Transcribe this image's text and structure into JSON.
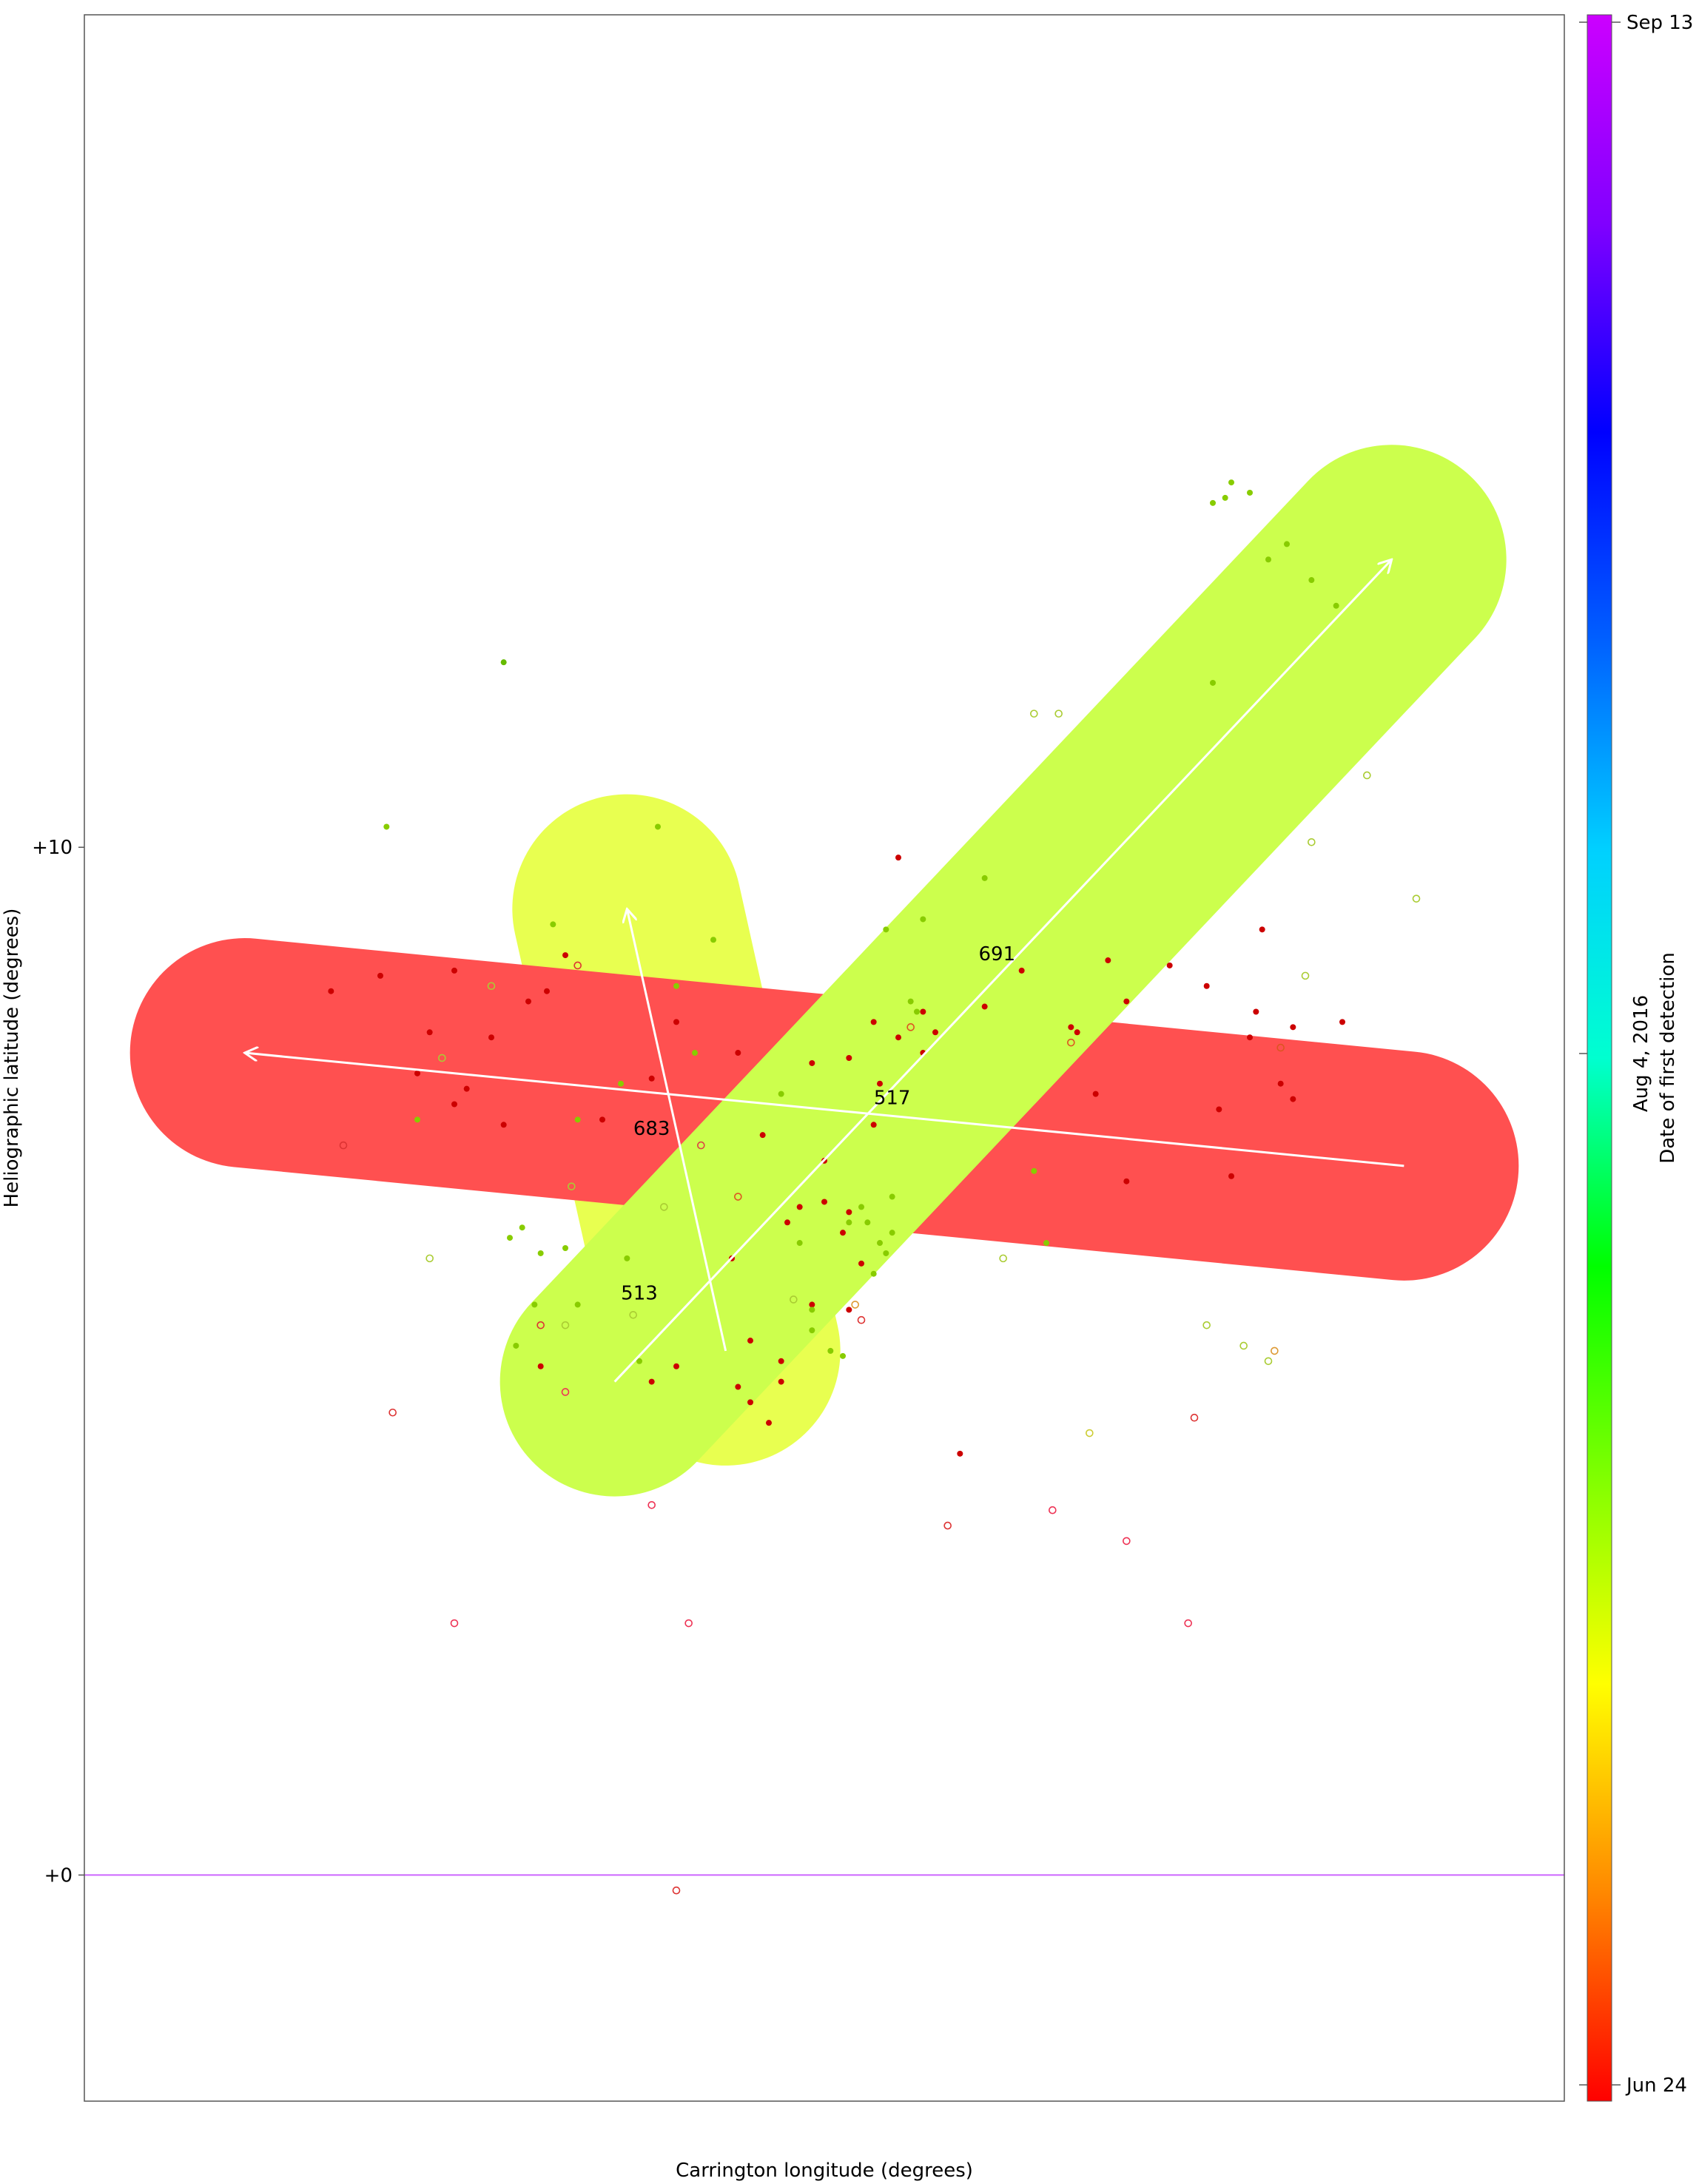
{
  "chart_data": {
    "type": "scatter",
    "xlabel": "Carrington longitude (degrees)",
    "ylabel": "Heliographic latitude (degrees)",
    "ylim": [
      -2.2,
      18.1
    ],
    "y_ticks": [
      {
        "value": 0,
        "label": "+0"
      },
      {
        "value": 10,
        "label": "+10"
      }
    ],
    "x_ticks": [],
    "grid": false,
    "colorbar": {
      "label": "Date of first detection",
      "ticks": [
        {
          "label": "Sep 13",
          "color": "#cc00ff"
        },
        {
          "label": "Aug 4, 2016",
          "color": "#00c8ff"
        },
        {
          "label": "Jun 24",
          "color": "#ff0000"
        }
      ],
      "colormap": [
        "#ff0000",
        "#ff8800",
        "#ffff00",
        "#7fff00",
        "#00ff00",
        "#00ffd0",
        "#00d0ff",
        "#0060ff",
        "#0000ff",
        "#8000ff",
        "#cc00ff"
      ]
    },
    "equator_line": {
      "y": 0,
      "color": "#cc66ff"
    },
    "regions": [
      {
        "label": "517",
        "color": "#ff5050",
        "x1": -0.47,
        "y1": 8.0,
        "x2": 0.47,
        "y2": 6.9,
        "label_x": 0.055,
        "label_y": 7.5
      },
      {
        "label": "683",
        "color": "#e8ff50",
        "x1": -0.16,
        "y1": 9.4,
        "x2": -0.08,
        "y2": 5.1,
        "label_x": -0.14,
        "label_y": 7.2
      },
      {
        "label": "691",
        "color": "#ccff4d",
        "x1": -0.17,
        "y1": 4.8,
        "x2": 0.46,
        "y2": 12.8,
        "label_x": 0.14,
        "label_y": 8.9
      },
      {
        "label": "513",
        "color": "#ccff4d",
        "x1": -0.17,
        "y1": 4.8,
        "x2": -0.17,
        "y2": 4.8,
        "label_x": -0.15,
        "label_y": 5.6
      }
    ],
    "points_filled": [
      [
        -0.3,
        8.8,
        "#cc0000"
      ],
      [
        -0.33,
        7.8,
        "#cc0000"
      ],
      [
        -0.24,
        8.5,
        "#cc0000"
      ],
      [
        -0.32,
        8.2,
        "#cc0000"
      ],
      [
        -0.26,
        7.3,
        "#cc0000"
      ],
      [
        -0.36,
        8.75,
        "#cc0000"
      ],
      [
        -0.18,
        7.35,
        "#cc0000"
      ],
      [
        -0.4,
        8.6,
        "#cc0000"
      ],
      [
        -0.29,
        7.65,
        "#cc0000"
      ],
      [
        -0.3,
        7.5,
        "#cc0000"
      ],
      [
        -0.21,
        8.95,
        "#cc0000"
      ],
      [
        -0.225,
        8.6,
        "#cc0000"
      ],
      [
        -0.14,
        7.75,
        "#cc0000"
      ],
      [
        -0.12,
        8.3,
        "#cc0000"
      ],
      [
        -0.07,
        8.0,
        "#cc0000"
      ],
      [
        -0.075,
        6.0,
        "#cc0000"
      ],
      [
        -0.01,
        7.9,
        "#cc0000"
      ],
      [
        0.02,
        7.95,
        "#cc0000"
      ],
      [
        0.04,
        8.3,
        "#cc0000"
      ],
      [
        0.045,
        7.7,
        "#cc0000"
      ],
      [
        0.06,
        8.15,
        "#cc0000"
      ],
      [
        0.08,
        8.0,
        "#cc0000"
      ],
      [
        0.08,
        8.4,
        "#cc0000"
      ],
      [
        0.09,
        8.2,
        "#cc0000"
      ],
      [
        0.13,
        8.45,
        "#cc0000"
      ],
      [
        0.06,
        9.9,
        "#cc0000"
      ],
      [
        -0.05,
        7.2,
        "#cc0000"
      ],
      [
        -0.03,
        6.35,
        "#cc0000"
      ],
      [
        -0.02,
        6.5,
        "#cc0000"
      ],
      [
        0.0,
        6.55,
        "#cc0000"
      ],
      [
        0.02,
        6.45,
        "#cc0000"
      ],
      [
        0.015,
        6.25,
        "#cc0000"
      ],
      [
        0.04,
        7.3,
        "#cc0000"
      ],
      [
        0.03,
        5.95,
        "#cc0000"
      ],
      [
        0.02,
        5.5,
        "#cc0000"
      ],
      [
        -0.01,
        5.55,
        "#cc0000"
      ],
      [
        -0.06,
        5.2,
        "#cc0000"
      ],
      [
        -0.06,
        4.6,
        "#cc0000"
      ],
      [
        -0.07,
        4.75,
        "#cc0000"
      ],
      [
        -0.035,
        5.0,
        "#cc0000"
      ],
      [
        -0.035,
        4.8,
        "#cc0000"
      ],
      [
        -0.045,
        4.4,
        "#cc0000"
      ],
      [
        -0.14,
        4.8,
        "#cc0000"
      ],
      [
        -0.12,
        4.95,
        "#cc0000"
      ],
      [
        0.16,
        8.8,
        "#cc0000"
      ],
      [
        0.2,
        8.25,
        "#cc0000"
      ],
      [
        0.205,
        8.2,
        "#cc0000"
      ],
      [
        0.23,
        8.9,
        "#cc0000"
      ],
      [
        0.245,
        8.5,
        "#cc0000"
      ],
      [
        0.28,
        8.85,
        "#cc0000"
      ],
      [
        0.22,
        7.6,
        "#cc0000"
      ],
      [
        0.245,
        6.75,
        "#cc0000"
      ],
      [
        0.33,
        6.8,
        "#cc0000"
      ],
      [
        0.32,
        7.45,
        "#cc0000"
      ],
      [
        0.31,
        8.65,
        "#cc0000"
      ],
      [
        0.355,
        9.2,
        "#cc0000"
      ],
      [
        0.35,
        8.4,
        "#cc0000"
      ],
      [
        0.37,
        7.7,
        "#cc0000"
      ],
      [
        0.38,
        7.55,
        "#cc0000"
      ],
      [
        0.345,
        8.15,
        "#cc0000"
      ],
      [
        0.38,
        8.25,
        "#cc0000"
      ],
      [
        0.42,
        8.3,
        "#cc0000"
      ],
      [
        0.0,
        6.95,
        "#cc0000"
      ],
      [
        -0.27,
        8.15,
        "#cc0000"
      ],
      [
        0.11,
        4.1,
        "#cc0000"
      ],
      [
        -0.23,
        4.95,
        "#cc0000"
      ]
    ],
    "points_green": [
      [
        -0.135,
        10.2,
        "#88cc00"
      ],
      [
        -0.355,
        10.2,
        "#88cc00"
      ],
      [
        -0.22,
        9.25,
        "#88cc00"
      ],
      [
        -0.12,
        8.65,
        "#88cc00"
      ],
      [
        -0.09,
        9.1,
        "#88cc00"
      ],
      [
        -0.26,
        11.8,
        "#66bb00"
      ],
      [
        0.325,
        13.4,
        "#88cc00"
      ],
      [
        0.33,
        13.55,
        "#88cc00"
      ],
      [
        0.315,
        13.35,
        "#88cc00"
      ],
      [
        0.345,
        13.45,
        "#88cc00"
      ],
      [
        0.36,
        12.8,
        "#88cc00"
      ],
      [
        0.375,
        12.95,
        "#88cc00"
      ],
      [
        0.395,
        12.6,
        "#88cc00"
      ],
      [
        0.415,
        12.35,
        "#88cc00"
      ],
      [
        0.315,
        11.6,
        "#88cc00"
      ],
      [
        0.13,
        9.7,
        "#88cc00"
      ],
      [
        0.05,
        9.2,
        "#88cc00"
      ],
      [
        0.08,
        9.3,
        "#88cc00"
      ],
      [
        0.07,
        8.5,
        "#88cc00"
      ],
      [
        0.075,
        8.4,
        "#88cc00"
      ],
      [
        -0.105,
        8.0,
        "#88cc00"
      ],
      [
        -0.165,
        7.7,
        "#88cc00"
      ],
      [
        -0.2,
        7.35,
        "#88cc00"
      ],
      [
        -0.245,
        6.3,
        "#88cc00"
      ],
      [
        -0.255,
        6.2,
        "#88cc00"
      ],
      [
        -0.235,
        5.55,
        "#88cc00"
      ],
      [
        -0.25,
        5.15,
        "#88cc00"
      ],
      [
        -0.2,
        5.55,
        "#88cc00"
      ],
      [
        0.03,
        6.5,
        "#88cc00"
      ],
      [
        0.035,
        6.35,
        "#88cc00"
      ],
      [
        -0.01,
        5.3,
        "#88cc00"
      ],
      [
        0.005,
        5.1,
        "#88cc00"
      ],
      [
        0.04,
        5.85,
        "#88cc00"
      ],
      [
        0.05,
        6.05,
        "#88cc00"
      ],
      [
        0.055,
        6.25,
        "#88cc00"
      ],
      [
        0.055,
        6.6,
        "#88cc00"
      ],
      [
        -0.16,
        6.0,
        "#88cc00"
      ],
      [
        -0.23,
        6.05,
        "#88cc00"
      ],
      [
        -0.21,
        6.1,
        "#88cc00"
      ],
      [
        0.045,
        6.15,
        "#88cc00"
      ],
      [
        0.02,
        6.35,
        "#88cc00"
      ],
      [
        -0.02,
        6.15,
        "#88cc00"
      ],
      [
        -0.01,
        5.5,
        "#88cc00"
      ],
      [
        0.015,
        5.05,
        "#88cc00"
      ],
      [
        -0.15,
        5.0,
        "#88cc00"
      ],
      [
        0.18,
        6.15,
        "#88cc00"
      ],
      [
        0.17,
        6.85,
        "#88cc00"
      ],
      [
        -0.035,
        7.6,
        "#88cc00"
      ],
      [
        -0.33,
        7.35,
        "#88cc00"
      ]
    ],
    "points_open": [
      [
        -0.39,
        7.1,
        "#dd3333"
      ],
      [
        -0.2,
        8.85,
        "#dd3333"
      ],
      [
        -0.23,
        5.35,
        "#dd3333"
      ],
      [
        -0.35,
        4.5,
        "#dd3333"
      ],
      [
        -0.21,
        4.7,
        "#ee3355"
      ],
      [
        -0.1,
        7.1,
        "#dd4444"
      ],
      [
        0.03,
        5.4,
        "#dd3333"
      ],
      [
        0.2,
        8.1,
        "#dd5522"
      ],
      [
        0.37,
        8.05,
        "#dd5522"
      ],
      [
        0.3,
        4.45,
        "#dd3333"
      ],
      [
        0.1,
        3.4,
        "#dd3333"
      ],
      [
        0.185,
        3.55,
        "#ee3355"
      ],
      [
        0.245,
        3.25,
        "#ee3355"
      ],
      [
        0.295,
        2.45,
        "#ee3355"
      ],
      [
        -0.3,
        2.45,
        "#ee3355"
      ],
      [
        -0.11,
        2.45,
        "#ee3355"
      ],
      [
        -0.14,
        3.6,
        "#ee3355"
      ],
      [
        -0.07,
        6.6,
        "#dd5522"
      ],
      [
        -0.12,
        -0.15,
        "#dd3333"
      ],
      [
        0.07,
        8.25,
        "#dd5522"
      ],
      [
        0.395,
        10.05,
        "#aacc33"
      ],
      [
        0.39,
        8.75,
        "#aacc33"
      ],
      [
        0.17,
        11.3,
        "#aacc33"
      ],
      [
        0.19,
        11.3,
        "#aacc33"
      ],
      [
        0.44,
        10.7,
        "#aacc33"
      ],
      [
        -0.27,
        8.65,
        "#aacc33"
      ],
      [
        -0.31,
        7.95,
        "#aacc33"
      ],
      [
        -0.205,
        6.7,
        "#aacc33"
      ],
      [
        -0.155,
        5.45,
        "#aacc33"
      ],
      [
        -0.21,
        5.35,
        "#aacc33"
      ],
      [
        -0.32,
        6.0,
        "#aacc33"
      ],
      [
        0.31,
        5.35,
        "#aacc33"
      ],
      [
        0.34,
        5.15,
        "#aacc33"
      ],
      [
        0.36,
        5.0,
        "#aacc33"
      ],
      [
        0.48,
        9.5,
        "#aacc33"
      ],
      [
        0.145,
        6.0,
        "#aacc33"
      ],
      [
        -0.13,
        6.5,
        "#aacc33"
      ],
      [
        -0.025,
        5.6,
        "#aacc33"
      ],
      [
        0.215,
        4.3,
        "#cccc33"
      ],
      [
        0.365,
        5.1,
        "#dd9933"
      ],
      [
        0.025,
        5.55,
        "#dd9933"
      ]
    ]
  }
}
